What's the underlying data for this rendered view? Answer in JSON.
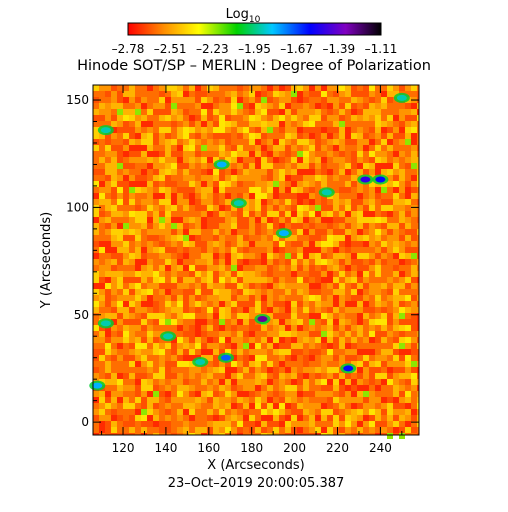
{
  "chart_data": {
    "type": "heatmap",
    "title": "Hinode SOT/SP – MERLIN : Degree of Polarization",
    "xlabel": "X (Arcseconds)",
    "ylabel": "Y (Arcseconds)",
    "footer": "23–Oct–2019 20:00:05.387",
    "colorbar": {
      "label": "Log",
      "label_sub": "10",
      "ticks": [
        "–2.78",
        "–2.51",
        "–2.23",
        "–1.95",
        "–1.67",
        "–1.39",
        "–1.11"
      ],
      "range": [
        -2.78,
        -1.11
      ],
      "colormap": [
        "#ff0000",
        "#ff8c00",
        "#ffff00",
        "#00d200",
        "#00c8ff",
        "#0000ff",
        "#8000c0",
        "#000000"
      ]
    },
    "xlim": [
      106,
      258
    ],
    "ylim": [
      -6,
      157
    ],
    "x_ticks": [
      {
        "value": 120,
        "label": "120"
      },
      {
        "value": 140,
        "label": "140"
      },
      {
        "value": 160,
        "label": "160"
      },
      {
        "value": 180,
        "label": "180"
      },
      {
        "value": 200,
        "label": "200"
      },
      {
        "value": 220,
        "label": "220"
      },
      {
        "value": 240,
        "label": "240"
      }
    ],
    "y_ticks": [
      {
        "value": 0,
        "label": "0"
      },
      {
        "value": 50,
        "label": "50"
      },
      {
        "value": 100,
        "label": "100"
      },
      {
        "value": 150,
        "label": "150"
      }
    ],
    "background_level": -2.5,
    "features": [
      {
        "x": 185,
        "y": 48,
        "level": -1.3
      },
      {
        "x": 168,
        "y": 30,
        "level": -1.7
      },
      {
        "x": 225,
        "y": 25,
        "level": -1.6
      },
      {
        "x": 233,
        "y": 113,
        "level": -1.5
      },
      {
        "x": 240,
        "y": 113,
        "level": -1.6
      },
      {
        "x": 166,
        "y": 120,
        "level": -1.8
      },
      {
        "x": 174,
        "y": 102,
        "level": -1.9
      },
      {
        "x": 195,
        "y": 88,
        "level": -1.8
      },
      {
        "x": 141,
        "y": 40,
        "level": -1.9
      },
      {
        "x": 112,
        "y": 46,
        "level": -1.9
      },
      {
        "x": 215,
        "y": 107,
        "level": -1.9
      },
      {
        "x": 108,
        "y": 17,
        "level": -1.8
      },
      {
        "x": 250,
        "y": 151,
        "level": -1.9
      },
      {
        "x": 156,
        "y": 28,
        "level": -1.9
      },
      {
        "x": 112,
        "y": 136,
        "level": -1.9
      }
    ]
  }
}
